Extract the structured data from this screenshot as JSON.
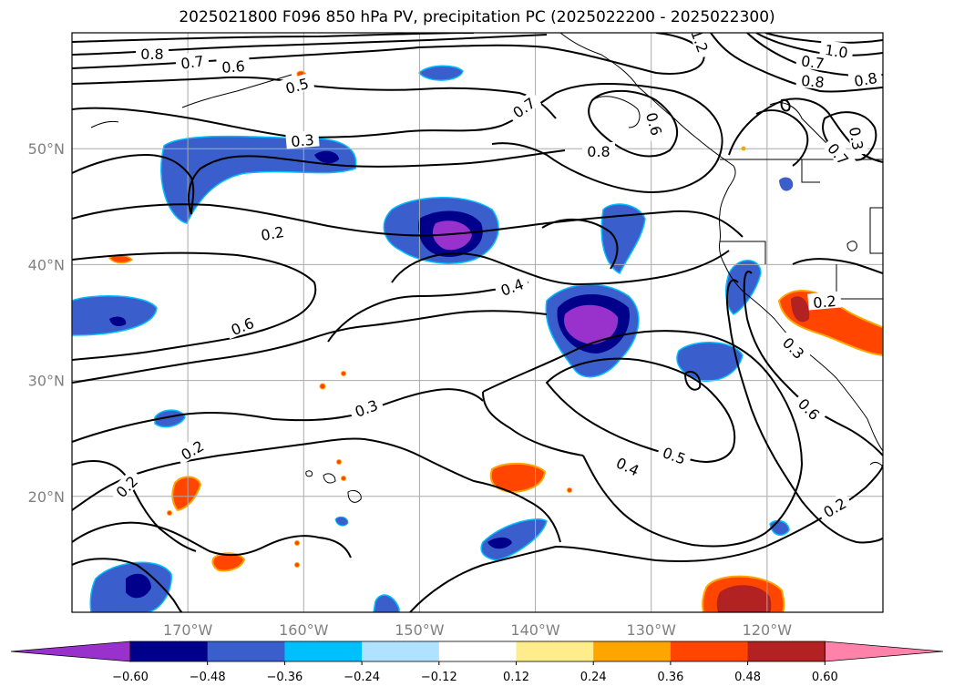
{
  "chart_data": {
    "type": "map",
    "title": "2025021800 F096 850 hPa PV, precipitation PC (2025022200 - 2025022300)",
    "lon_ticks": [
      "170°W",
      "160°W",
      "150°W",
      "140°W",
      "130°W",
      "120°W"
    ],
    "lat_ticks": [
      "50°N",
      "40°N",
      "30°N",
      "20°N"
    ],
    "lon_range": [
      -180,
      -110
    ],
    "lat_range": [
      10,
      60
    ],
    "grid": true,
    "colorbar": {
      "position": "bottom",
      "extend": "both",
      "tick_labels": [
        "−0.60",
        "−0.48",
        "−0.36",
        "−0.24",
        "−0.12",
        "0.12",
        "0.24",
        "0.36",
        "0.48",
        "0.60"
      ],
      "colors": [
        "#9932cc",
        "#00008b",
        "#3a5fcd",
        "#00bfff",
        "#b0e2ff",
        "#ffffff",
        "#ffec8b",
        "#ffa500",
        "#ff4500",
        "#b22222",
        "#ff82ab"
      ]
    },
    "contour_labels": [
      "0.8",
      "0.7",
      "0.6",
      "0.5",
      "0.3",
      "0.2",
      "0.6",
      "0.7",
      "0.8",
      "0.6",
      "1.2",
      "1.0",
      "0.7",
      "0.8",
      "0.8",
      "0.7",
      "0.4",
      "0.3",
      "0.2",
      "0.2",
      "0.4",
      "0.5",
      "0.6",
      "0.3",
      "0.2",
      "0.2",
      "0.3"
    ]
  }
}
